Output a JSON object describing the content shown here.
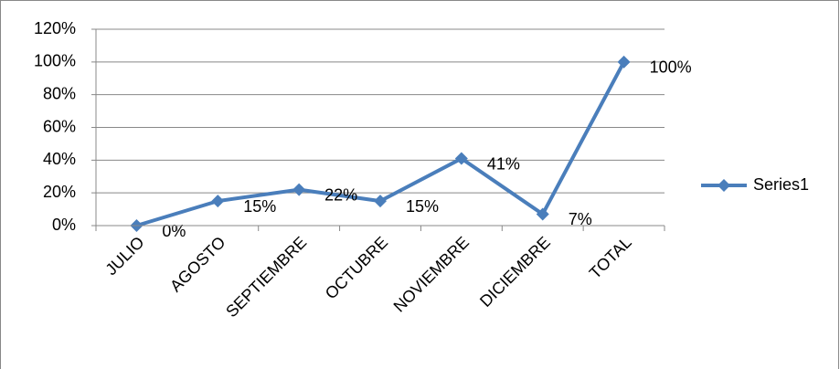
{
  "chart_data": {
    "type": "line",
    "categories": [
      "JULIO",
      "AGOSTO",
      "SEPTIEMBRE",
      "OCTUBRE",
      "NOVIEMBRE",
      "DICIEMBRE",
      "TOTAL"
    ],
    "series": [
      {
        "name": "Series1",
        "color": "#4a7ebb",
        "values": [
          0,
          15,
          22,
          15,
          41,
          7,
          100
        ],
        "value_labels": [
          "0%",
          "15%",
          "22%",
          "15%",
          "41%",
          "7%",
          "100%"
        ]
      }
    ],
    "ylim": [
      0,
      120
    ],
    "yticks": [
      {
        "value": 0,
        "label": "0%"
      },
      {
        "value": 20,
        "label": "20%"
      },
      {
        "value": 40,
        "label": "40%"
      },
      {
        "value": 60,
        "label": "60%"
      },
      {
        "value": 80,
        "label": "80%"
      },
      {
        "value": 100,
        "label": "100%"
      },
      {
        "value": 120,
        "label": "120%"
      }
    ],
    "grid": true,
    "legend": "right"
  }
}
